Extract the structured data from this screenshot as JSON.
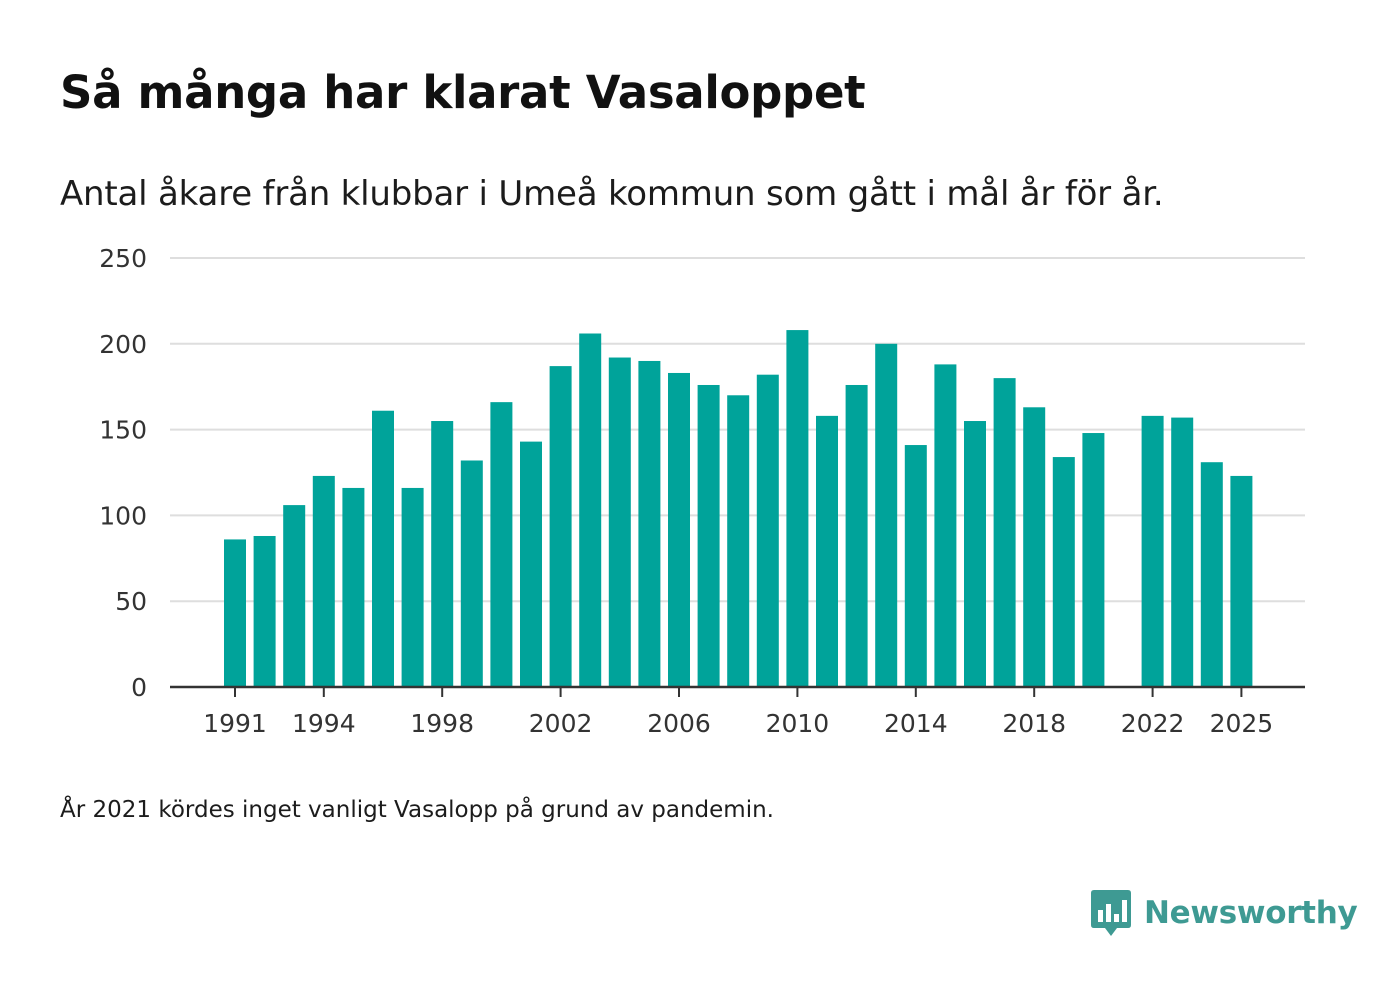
{
  "header": {
    "title": "Så många har klarat Vasaloppet",
    "subtitle": "Antal åkare från klubbar i Umeå kommun som gått i mål år för år."
  },
  "footnote": "År 2021 kördes inget vanligt Vasalopp på grund av pandemin.",
  "brand": {
    "name": "Newsworthy",
    "icon": "newsworthy-logo-icon",
    "color": "#3e9a93"
  },
  "colors": {
    "bar": "#00a39a",
    "grid": "#dedede",
    "axis": "#333333"
  },
  "chart_data": {
    "type": "bar",
    "title": "Så många har klarat Vasaloppet",
    "subtitle": "Antal åkare från klubbar i Umeå kommun som gått i mål år för år.",
    "xlabel": "",
    "ylabel": "",
    "ylim": [
      0,
      250
    ],
    "yticks": [
      "0",
      "50",
      "100",
      "150",
      "200",
      "250"
    ],
    "xticks": [
      "1991",
      "1994",
      "1998",
      "2002",
      "2006",
      "2010",
      "2014",
      "2018",
      "2022",
      "2025"
    ],
    "grid": true,
    "categories": [
      1991,
      1992,
      1993,
      1994,
      1995,
      1996,
      1997,
      1998,
      1999,
      2000,
      2001,
      2002,
      2003,
      2004,
      2005,
      2006,
      2007,
      2008,
      2009,
      2010,
      2011,
      2012,
      2013,
      2014,
      2015,
      2016,
      2017,
      2018,
      2019,
      2020,
      2021,
      2022,
      2023,
      2024,
      2025
    ],
    "values": [
      86,
      88,
      106,
      123,
      116,
      161,
      116,
      155,
      132,
      166,
      143,
      187,
      206,
      192,
      190,
      183,
      176,
      170,
      182,
      208,
      158,
      176,
      200,
      141,
      188,
      155,
      180,
      163,
      134,
      148,
      null,
      158,
      157,
      131,
      123
    ]
  }
}
